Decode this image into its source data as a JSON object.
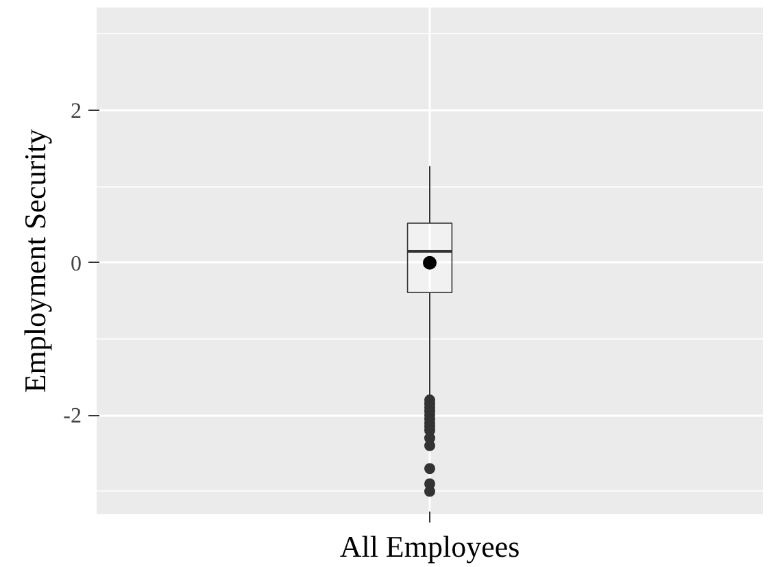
{
  "chart_data": {
    "type": "box",
    "xlabel": "All Employees",
    "ylabel": "Employment Security",
    "categories": [
      null
    ],
    "boxes": [
      {
        "low": -1.76,
        "q1": -0.39,
        "median": 0.15,
        "q3": 0.52,
        "high": 1.27,
        "mean": 0.0,
        "outliers": [
          -1.8,
          -1.85,
          -1.9,
          -1.95,
          -2.0,
          -2.05,
          -2.1,
          -2.15,
          -2.2,
          -2.3,
          -2.4,
          -2.7,
          -2.9,
          -3.0
        ]
      }
    ],
    "ylim": [
      -3.3,
      3.35
    ],
    "yticks": [
      -2,
      0,
      2
    ],
    "grid": true
  }
}
